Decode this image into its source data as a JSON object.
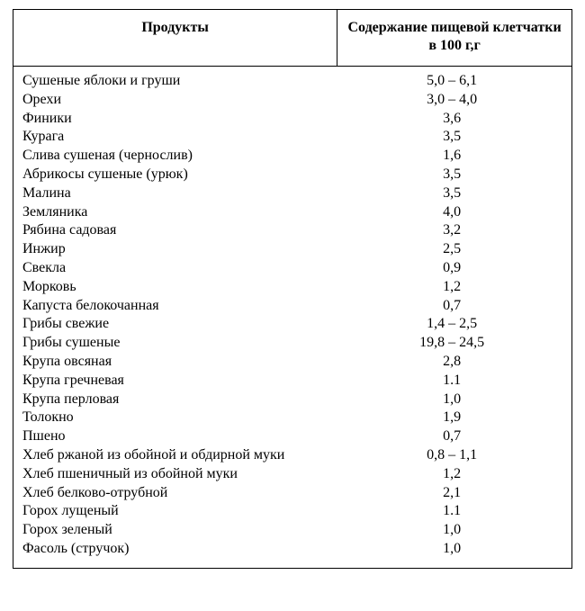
{
  "table": {
    "header": {
      "product": "Продукты",
      "value": "Содержание пищевой клетчатки в 100 г,г"
    },
    "rows": [
      {
        "product": "Сушеные яблоки и груши",
        "value": "5,0 – 6,1"
      },
      {
        "product": "Орехи",
        "value": "3,0 – 4,0"
      },
      {
        "product": "Финики",
        "value": "3,6"
      },
      {
        "product": "Курага",
        "value": "3,5"
      },
      {
        "product": "Слива сушеная (чернослив)",
        "value": "1,6"
      },
      {
        "product": "Абрикосы сушеные (урюк)",
        "value": "3,5"
      },
      {
        "product": "Малина",
        "value": "3,5"
      },
      {
        "product": "Земляника",
        "value": "4,0"
      },
      {
        "product": "Рябина садовая",
        "value": "3,2"
      },
      {
        "product": "Инжир",
        "value": "2,5"
      },
      {
        "product": "Свекла",
        "value": "0,9"
      },
      {
        "product": "Морковь",
        "value": "1,2"
      },
      {
        "product": "Капуста белокочанная",
        "value": "0,7"
      },
      {
        "product": "Грибы свежие",
        "value": "1,4 – 2,5"
      },
      {
        "product": "Грибы сушеные",
        "value": "19,8 – 24,5"
      },
      {
        "product": "Крупа овсяная",
        "value": "2,8"
      },
      {
        "product": "Крупа гречневая",
        "value": "1.1"
      },
      {
        "product": "Крупа перловая",
        "value": "1,0"
      },
      {
        "product": "Толокно",
        "value": "1,9"
      },
      {
        "product": "Пшено",
        "value": "0,7"
      },
      {
        "product": "Хлеб ржаной из обойной и обдирной муки",
        "value": "0,8 – 1,1"
      },
      {
        "product": "Хлеб пшеничный из обойной муки",
        "value": "1,2"
      },
      {
        "product": "Хлеб белково-отрубной",
        "value": "2,1"
      },
      {
        "product": "Горох лущеный",
        "value": "1.1"
      },
      {
        "product": "Горох зеленый",
        "value": "1,0"
      },
      {
        "product": "Фасоль (стручок)",
        "value": "1,0"
      }
    ],
    "style": {
      "font_family": "Times New Roman",
      "header_fontsize_pt": 12,
      "body_fontsize_pt": 12,
      "text_color": "#000000",
      "border_color": "#000000",
      "background_color": "#ffffff",
      "col_widths_pct": [
        58,
        42
      ],
      "value_align": "center",
      "product_align": "left"
    }
  }
}
